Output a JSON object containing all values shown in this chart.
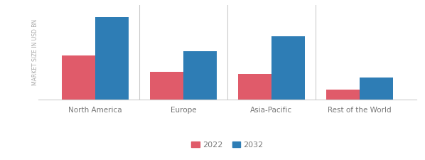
{
  "categories": [
    "North America",
    "Europe",
    "Asia-Pacific",
    "Rest of the World"
  ],
  "values_2022": [
    3.5,
    2.2,
    2.0,
    0.75
  ],
  "values_2032": [
    6.5,
    3.8,
    5.0,
    1.7
  ],
  "color_2022": "#e05b6a",
  "color_2032": "#2e7db5",
  "ylabel": "MARKET SIZE IN USD BN",
  "legend_2022": "2022",
  "legend_2032": "2032",
  "bar_width": 0.38,
  "background_color": "#ffffff",
  "ylim": [
    0,
    7.5
  ]
}
